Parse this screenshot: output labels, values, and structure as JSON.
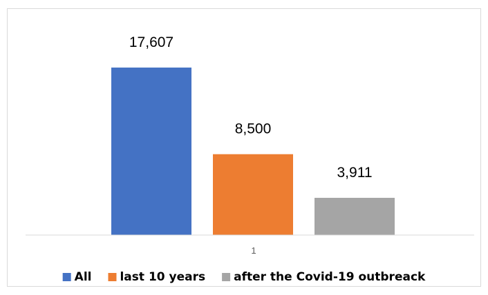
{
  "chart_data": {
    "type": "bar",
    "categories": [
      "1"
    ],
    "series": [
      {
        "name": "All",
        "values": [
          17607
        ],
        "label": "17,607",
        "color": "#4472C4"
      },
      {
        "name": "last 10 years",
        "values": [
          8500
        ],
        "label": "8,500",
        "color": "#ED7D31"
      },
      {
        "name": "after the Covid-19 outbreack",
        "values": [
          3911
        ],
        "label": "3,911",
        "color": "#A5A5A5"
      }
    ],
    "title": "",
    "xlabel": "",
    "ylabel": "",
    "ylim": [
      0,
      20000
    ],
    "grid": false,
    "legend": "bottom"
  }
}
